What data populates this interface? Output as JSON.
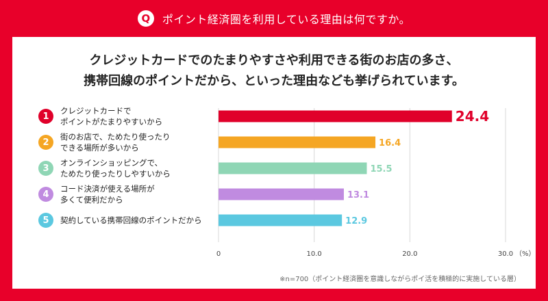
{
  "header": {
    "badge": "Q",
    "question": "ポイント経済圏を利用している理由は何ですか。"
  },
  "headline": {
    "line1": "クレジットカードでのたまりやすさや利用できる街のお店の多さ、",
    "line2": "携帯回線のポイントだから、といった理由なども挙げられています。"
  },
  "chart_data": {
    "type": "bar",
    "orientation": "horizontal",
    "categories": [
      [
        "クレジットカードで",
        "ポイントがたまりやすいから"
      ],
      [
        "街のお店で、ためたり使ったり",
        "できる場所が多いから"
      ],
      [
        "オンラインショッピングで、",
        "ためたり使ったりしやすいから"
      ],
      [
        "コード決済が使える場所が",
        "多くて便利だから"
      ],
      [
        "契約している携帯回線のポイントだから"
      ]
    ],
    "ranks": [
      "1",
      "2",
      "3",
      "4",
      "5"
    ],
    "values": [
      24.4,
      16.4,
      15.5,
      13.1,
      12.9
    ],
    "value_labels": [
      "24.4",
      "16.4",
      "15.5",
      "13.1",
      "12.9"
    ],
    "colors": [
      "#e0002a",
      "#f5a623",
      "#8fd6b5",
      "#c08be0",
      "#5bc8e0"
    ],
    "ticks": [
      "0",
      "10.0",
      "20.0",
      "30.0"
    ],
    "tick_values": [
      0,
      10,
      20,
      30
    ],
    "unit": "（%）",
    "xlim": [
      0,
      30
    ],
    "grid": true
  },
  "note": "※n=700（ポイント経済圏を意識しながらポイ活を積極的に実施している層）"
}
